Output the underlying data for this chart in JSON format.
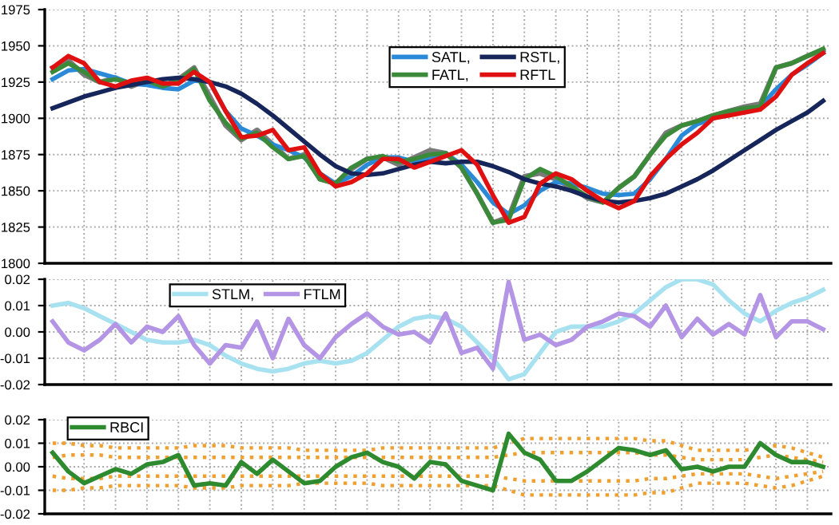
{
  "chart_data": [
    {
      "type": "line",
      "categories": [
        null,
        null,
        null,
        null,
        null,
        null,
        null,
        null,
        null,
        null,
        null,
        null,
        null,
        null,
        null,
        null,
        null,
        null,
        null,
        null,
        null,
        null,
        null,
        null,
        null,
        null,
        null,
        null,
        null,
        null,
        null,
        null,
        null,
        null,
        null,
        null,
        null,
        null,
        null,
        null,
        null,
        null,
        null,
        null,
        null,
        null,
        null,
        null,
        null,
        null
      ],
      "series": [
        {
          "color": "#7a7a7a",
          "values": [
            1935,
            1940,
            1930,
            1925,
            1928,
            1922,
            1926,
            1922,
            1927,
            1935,
            1915,
            1895,
            1885,
            1892,
            1882,
            1872,
            1875,
            1858,
            1855,
            1865,
            1872,
            1873,
            1868,
            1873,
            1878,
            1876,
            1866,
            1848,
            1828,
            1832,
            1860,
            1862,
            1858,
            1852,
            1845,
            1842,
            1852,
            1860,
            1875,
            1890,
            1895,
            1898,
            1902,
            1905,
            1908,
            1910,
            1935,
            1938,
            1943,
            1947
          ]
        },
        {
          "name": "SATL,",
          "color": "#2a8ad8",
          "values": [
            1927,
            1933,
            1934,
            1931,
            1928,
            1924,
            1923,
            1921,
            1920,
            1926,
            1925,
            1905,
            1893,
            1888,
            1882,
            1878,
            1873,
            1862,
            1855,
            1860,
            1868,
            1873,
            1873,
            1870,
            1872,
            1876,
            1868,
            1856,
            1842,
            1834,
            1840,
            1850,
            1856,
            1855,
            1852,
            1848,
            1847,
            1848,
            1858,
            1872,
            1888,
            1896,
            1900,
            1903,
            1906,
            1908,
            1920,
            1930,
            1937,
            1945
          ]
        },
        {
          "name": "FATL,",
          "color": "#3a8a3a",
          "values": [
            1932,
            1938,
            1932,
            1925,
            1927,
            1924,
            1926,
            1922,
            1926,
            1934,
            1912,
            1897,
            1886,
            1890,
            1880,
            1872,
            1874,
            1858,
            1855,
            1866,
            1872,
            1874,
            1870,
            1872,
            1875,
            1876,
            1866,
            1848,
            1828,
            1830,
            1858,
            1865,
            1860,
            1853,
            1846,
            1842,
            1852,
            1860,
            1875,
            1888,
            1895,
            1898,
            1902,
            1905,
            1907,
            1908,
            1935,
            1938,
            1943,
            1948
          ]
        },
        {
          "name": "RSTL,",
          "color": "#16265a",
          "values": [
            1907,
            1911,
            1915,
            1918,
            1921,
            1923,
            1925,
            1927,
            1928,
            1927,
            1925,
            1922,
            1917,
            1910,
            1902,
            1893,
            1884,
            1875,
            1867,
            1862,
            1861,
            1862,
            1865,
            1868,
            1870,
            1869,
            1870,
            1870,
            1867,
            1863,
            1858,
            1855,
            1853,
            1850,
            1846,
            1843,
            1842,
            1843,
            1845,
            1848,
            1853,
            1858,
            1864,
            1871,
            1878,
            1885,
            1892,
            1898,
            1904,
            1912
          ]
        },
        {
          "name": "RFTL",
          "color": "#e01010",
          "values": [
            1935,
            1943,
            1938,
            1925,
            1922,
            1926,
            1928,
            1924,
            1924,
            1932,
            1925,
            1905,
            1887,
            1888,
            1892,
            1878,
            1880,
            1862,
            1853,
            1856,
            1862,
            1872,
            1872,
            1866,
            1870,
            1874,
            1878,
            1868,
            1847,
            1828,
            1832,
            1855,
            1862,
            1858,
            1850,
            1843,
            1838,
            1843,
            1860,
            1872,
            1882,
            1890,
            1900,
            1902,
            1904,
            1906,
            1915,
            1930,
            1938,
            1945
          ]
        }
      ],
      "ylim": [
        1800,
        1975
      ],
      "yticks": [
        1800,
        1825,
        1850,
        1875,
        1900,
        1925,
        1950,
        1975
      ],
      "grid": true,
      "legend": "top",
      "tick_labels": "y",
      "marker": "none",
      "line_style": "solid"
    },
    {
      "type": "line",
      "categories": [
        null,
        null,
        null,
        null,
        null,
        null,
        null,
        null,
        null,
        null,
        null,
        null,
        null,
        null,
        null,
        null,
        null,
        null,
        null,
        null,
        null,
        null,
        null,
        null,
        null,
        null,
        null,
        null,
        null,
        null,
        null,
        null,
        null,
        null,
        null,
        null,
        null,
        null,
        null,
        null,
        null,
        null,
        null,
        null,
        null,
        null,
        null,
        null,
        null,
        null
      ],
      "series": [
        {
          "name": "STLM,",
          "color": "#a8e2f0",
          "values": [
            0.01,
            0.011,
            0.009,
            0.006,
            0.003,
            0.0,
            -0.003,
            -0.004,
            -0.004,
            -0.003,
            -0.005,
            -0.009,
            -0.012,
            -0.014,
            -0.015,
            -0.014,
            -0.012,
            -0.011,
            -0.012,
            -0.011,
            -0.008,
            -0.003,
            0.002,
            0.005,
            0.006,
            0.005,
            0.002,
            -0.004,
            -0.01,
            -0.018,
            -0.016,
            -0.008,
            0.0,
            0.002,
            0.002,
            0.002,
            0.004,
            0.007,
            0.012,
            0.017,
            0.02,
            0.02,
            0.018,
            0.012,
            0.007,
            0.004,
            0.008,
            0.011,
            0.013,
            0.016
          ]
        },
        {
          "name": "FTLM",
          "color": "#b494e4",
          "values": [
            0.004,
            -0.004,
            -0.007,
            -0.003,
            0.003,
            -0.004,
            0.002,
            0.0,
            0.006,
            -0.005,
            -0.012,
            -0.005,
            -0.006,
            0.004,
            -0.01,
            0.005,
            -0.005,
            -0.01,
            -0.002,
            0.003,
            0.007,
            0.002,
            -0.001,
            0.0,
            -0.004,
            0.007,
            -0.008,
            -0.006,
            -0.014,
            0.019,
            -0.003,
            -0.001,
            -0.005,
            -0.003,
            0.002,
            0.004,
            0.007,
            0.006,
            0.002,
            0.01,
            -0.002,
            0.005,
            -0.001,
            0.003,
            -0.001,
            0.014,
            -0.002,
            0.004,
            0.004,
            0.001
          ]
        }
      ],
      "ylim": [
        -0.02,
        0.02
      ],
      "yticks": [
        {
          "value": -0.02,
          "label": "-0.02"
        },
        {
          "value": -0.01,
          "label": "-0.01"
        },
        {
          "value": 0,
          "label": "0.00"
        },
        {
          "value": 0.01,
          "label": "0.01"
        },
        {
          "value": 0.02,
          "label": "0.02"
        }
      ],
      "grid": true,
      "legend": "top left",
      "tick_labels": "y",
      "marker": "none",
      "line_style": "solid"
    },
    {
      "type": "line",
      "categories": [
        null,
        null,
        null,
        null,
        null,
        null,
        null,
        null,
        null,
        null,
        null,
        null,
        null,
        null,
        null,
        null,
        null,
        null,
        null,
        null,
        null,
        null,
        null,
        null,
        null,
        null,
        null,
        null,
        null,
        null,
        null,
        null,
        null,
        null,
        null,
        null,
        null,
        null,
        null,
        null,
        null,
        null,
        null,
        null,
        null,
        null,
        null,
        null,
        null,
        null
      ],
      "series": [
        {
          "color": "#f0a030",
          "line_style": "dotted",
          "values": [
            0.01,
            0.01,
            0.009,
            0.009,
            0.008,
            0.008,
            0.008,
            0.008,
            0.008,
            0.009,
            0.009,
            0.009,
            0.008,
            0.008,
            0.008,
            0.008,
            0.007,
            0.007,
            0.007,
            0.007,
            0.007,
            0.008,
            0.008,
            0.008,
            0.008,
            0.008,
            0.008,
            0.008,
            0.008,
            0.01,
            0.012,
            0.012,
            0.012,
            0.012,
            0.012,
            0.012,
            0.012,
            0.012,
            0.011,
            0.011,
            0.009,
            0.007,
            0.007,
            0.007,
            0.007,
            0.008,
            0.009,
            0.008,
            0.006,
            0.004
          ]
        },
        {
          "color": "#f0a030",
          "line_style": "dotted",
          "values": [
            0.004,
            0.005,
            0.005,
            0.005,
            0.004,
            0.004,
            0.004,
            0.004,
            0.004,
            0.004,
            0.004,
            0.004,
            0.004,
            0.004,
            0.004,
            0.004,
            0.004,
            0.004,
            0.004,
            0.004,
            0.004,
            0.004,
            0.004,
            0.004,
            0.004,
            0.004,
            0.004,
            0.004,
            0.004,
            0.005,
            0.006,
            0.006,
            0.006,
            0.006,
            0.006,
            0.006,
            0.006,
            0.006,
            0.005,
            0.005,
            0.004,
            0.003,
            0.003,
            0.003,
            0.003,
            0.004,
            0.005,
            0.004,
            0.003,
            0.002
          ]
        },
        {
          "color": "#f0a030",
          "line_style": "dotted",
          "values": [
            -0.004,
            -0.005,
            -0.005,
            -0.005,
            -0.004,
            -0.004,
            -0.004,
            -0.004,
            -0.004,
            -0.004,
            -0.004,
            -0.004,
            -0.004,
            -0.004,
            -0.004,
            -0.004,
            -0.004,
            -0.004,
            -0.004,
            -0.004,
            -0.004,
            -0.004,
            -0.004,
            -0.004,
            -0.004,
            -0.004,
            -0.004,
            -0.004,
            -0.004,
            -0.005,
            -0.006,
            -0.006,
            -0.006,
            -0.006,
            -0.006,
            -0.006,
            -0.006,
            -0.006,
            -0.005,
            -0.005,
            -0.004,
            -0.003,
            -0.003,
            -0.003,
            -0.003,
            -0.004,
            -0.005,
            -0.004,
            -0.003,
            -0.002
          ]
        },
        {
          "color": "#f0a030",
          "line_style": "dotted",
          "values": [
            -0.01,
            -0.01,
            -0.009,
            -0.009,
            -0.008,
            -0.008,
            -0.008,
            -0.008,
            -0.008,
            -0.009,
            -0.009,
            -0.009,
            -0.008,
            -0.008,
            -0.008,
            -0.008,
            -0.007,
            -0.007,
            -0.007,
            -0.007,
            -0.007,
            -0.008,
            -0.008,
            -0.008,
            -0.008,
            -0.008,
            -0.008,
            -0.008,
            -0.008,
            -0.01,
            -0.012,
            -0.012,
            -0.012,
            -0.012,
            -0.012,
            -0.012,
            -0.012,
            -0.012,
            -0.011,
            -0.011,
            -0.009,
            -0.007,
            -0.007,
            -0.007,
            -0.007,
            -0.008,
            -0.009,
            -0.008,
            -0.006,
            -0.004
          ]
        },
        {
          "name": "RBCI",
          "color": "#2e8a2e",
          "values": [
            0.006,
            -0.002,
            -0.007,
            -0.004,
            -0.001,
            -0.003,
            0.001,
            0.002,
            0.005,
            -0.008,
            -0.007,
            -0.008,
            0.002,
            -0.003,
            0.003,
            -0.002,
            -0.007,
            -0.006,
            0.0,
            0.004,
            0.006,
            0.002,
            0.0,
            -0.005,
            0.002,
            0.001,
            -0.006,
            -0.008,
            -0.01,
            0.014,
            0.006,
            0.003,
            -0.006,
            -0.006,
            -0.002,
            0.003,
            0.008,
            0.007,
            0.005,
            0.007,
            -0.001,
            0.0,
            -0.002,
            0.0,
            0.0,
            0.01,
            0.005,
            0.002,
            0.002,
            0.0
          ]
        }
      ],
      "ylim": [
        -0.02,
        0.02
      ],
      "yticks": [
        {
          "value": -0.02,
          "label": "-0.02"
        },
        {
          "value": -0.01,
          "label": "-0.01"
        },
        {
          "value": 0,
          "label": "0.00"
        },
        {
          "value": 0.01,
          "label": "0.01"
        },
        {
          "value": 0.02,
          "label": "0.02"
        }
      ],
      "grid": true,
      "legend": "top left",
      "tick_labels": "y",
      "marker": "none",
      "line_style": "solid"
    }
  ]
}
